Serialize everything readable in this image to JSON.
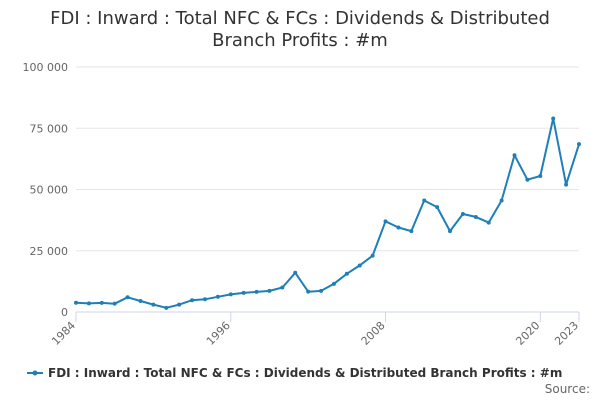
{
  "chart_data": {
    "type": "line",
    "title": "FDI : Inward : Total NFC & FCs : Dividends & Distributed",
    "title_line2": "Branch Profits : #m",
    "xlabel": "",
    "ylabel": "",
    "ylim": [
      0,
      100000
    ],
    "yticks": [
      0,
      25000,
      50000,
      75000,
      100000
    ],
    "ytick_labels": [
      "0",
      "25 000",
      "50 000",
      "75 000",
      "100 000"
    ],
    "xlim": [
      1984,
      2023
    ],
    "xticks": [
      1984,
      1996,
      2008,
      2020,
      2023
    ],
    "xtick_labels": [
      "1984",
      "1996",
      "2008",
      "2020",
      "2023"
    ],
    "grid": true,
    "legend_position": "bottom",
    "credit": "Source:",
    "series": [
      {
        "name": "FDI : Inward : Total NFC & FCs : Dividends & Distributed Branch Profits : #m",
        "color": "#1f7fb6",
        "x": [
          1984,
          1985,
          1986,
          1987,
          1988,
          1989,
          1990,
          1991,
          1992,
          1993,
          1994,
          1995,
          1996,
          1997,
          1998,
          1999,
          2000,
          2001,
          2002,
          2003,
          2004,
          2005,
          2006,
          2007,
          2008,
          2009,
          2010,
          2011,
          2012,
          2013,
          2014,
          2015,
          2016,
          2017,
          2018,
          2019,
          2020,
          2021,
          2022,
          2023
        ],
        "values": [
          3800,
          3500,
          3700,
          3400,
          6000,
          4500,
          3000,
          1700,
          3000,
          4800,
          5200,
          6200,
          7200,
          7800,
          8200,
          8600,
          10000,
          16000,
          8300,
          8600,
          11500,
          15600,
          19000,
          23000,
          37000,
          34500,
          33000,
          45500,
          42800,
          33000,
          40000,
          38800,
          36500,
          45500,
          64000,
          54000,
          55500,
          79000,
          52000,
          68500
        ]
      }
    ]
  }
}
